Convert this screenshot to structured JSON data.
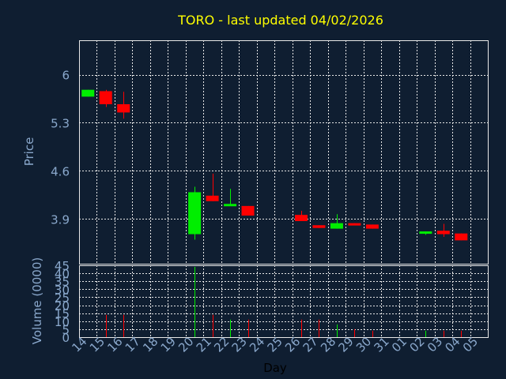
{
  "chart_data": {
    "type": "candlestick",
    "title": "TORO - last updated 04/02/2026",
    "xlabel": "Day",
    "ylabel": "Price",
    "volume_label": "Volume (0000)",
    "x_tick_labels": [
      "14",
      "15",
      "16",
      "17",
      "18",
      "19",
      "20",
      "21",
      "22",
      "23",
      "24",
      "25",
      "26",
      "27",
      "28",
      "29",
      "30",
      "31",
      "01",
      "02",
      "03",
      "04",
      "05"
    ],
    "y_ticks": [
      3.9,
      4.6,
      5.3,
      6
    ],
    "y_tick_labels": [
      "3.9",
      "4.6",
      "5.3",
      "6"
    ],
    "ylim": [
      3.25,
      6.5
    ],
    "volume_ticks": [
      0,
      5,
      10,
      15,
      20,
      25,
      30,
      35,
      40,
      45
    ],
    "volume_tick_labels": [
      "0",
      "5",
      "10",
      "15",
      "20",
      "25",
      "30",
      "35",
      "40",
      "45"
    ],
    "volume_ylim": [
      0,
      45
    ],
    "candles": [
      {
        "day": "14",
        "open": 5.68,
        "close": 5.78,
        "high": 5.78,
        "low": 5.68,
        "volume": 0
      },
      {
        "day": "15",
        "open": 5.76,
        "close": 5.57,
        "high": 5.78,
        "low": 5.53,
        "volume": 14
      },
      {
        "day": "16",
        "open": 5.57,
        "close": 5.45,
        "high": 5.75,
        "low": 5.36,
        "volume": 14
      },
      {
        "day": "20",
        "open": 3.68,
        "close": 4.29,
        "high": 4.37,
        "low": 3.6,
        "volume": 44
      },
      {
        "day": "21",
        "open": 4.24,
        "close": 4.16,
        "high": 4.56,
        "low": 4.16,
        "volume": 14
      },
      {
        "day": "22",
        "open": 4.1,
        "close": 4.12,
        "high": 4.34,
        "low": 4.09,
        "volume": 11
      },
      {
        "day": "23",
        "open": 4.09,
        "close": 3.95,
        "high": 4.09,
        "low": 3.95,
        "volume": 11
      },
      {
        "day": "26",
        "open": 3.96,
        "close": 3.87,
        "high": 4.02,
        "low": 3.87,
        "volume": 11
      },
      {
        "day": "27",
        "open": 3.81,
        "close": 3.77,
        "high": 3.81,
        "low": 3.77,
        "volume": 11
      },
      {
        "day": "28",
        "open": 3.76,
        "close": 3.84,
        "high": 3.97,
        "low": 3.76,
        "volume": 8
      },
      {
        "day": "29",
        "open": 3.84,
        "close": 3.81,
        "high": 3.84,
        "low": 3.81,
        "volume": 5
      },
      {
        "day": "30",
        "open": 3.82,
        "close": 3.76,
        "high": 3.82,
        "low": 3.76,
        "volume": 4
      },
      {
        "day": "02",
        "open": 3.7,
        "close": 3.72,
        "high": 3.72,
        "low": 3.67,
        "volume": 4
      },
      {
        "day": "03",
        "open": 3.73,
        "close": 3.68,
        "high": 3.83,
        "low": 3.64,
        "volume": 4
      },
      {
        "day": "04",
        "open": 3.69,
        "close": 3.59,
        "high": 3.69,
        "low": 3.59,
        "volume": 4
      }
    ],
    "colors": {
      "background": "#0f1e31",
      "grid": "#e8e8e8",
      "up": "#00ee00",
      "down": "#ff0000",
      "title": "#ffff00",
      "axis_text": "#8aa8cc",
      "xlabel": "#000000"
    }
  }
}
